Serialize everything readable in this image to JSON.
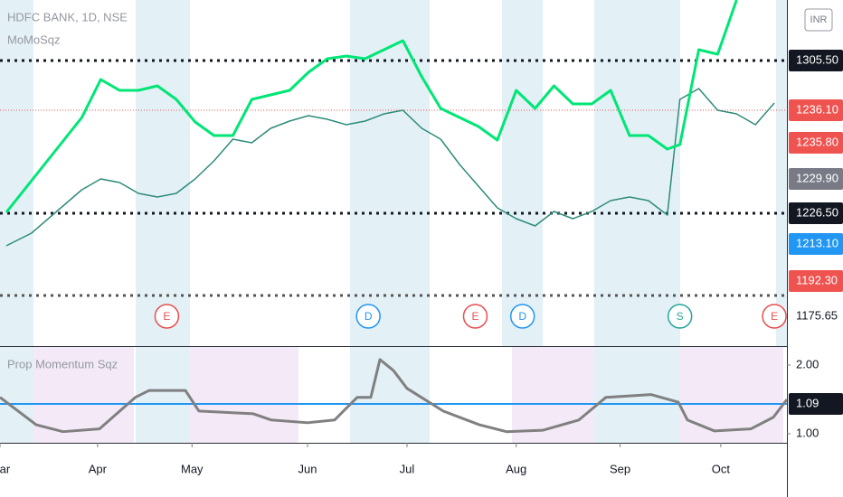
{
  "chart_data": [
    {
      "type": "line",
      "title": "HDFC BANK, 1D, NSE",
      "subtitle": "MoMoSqz",
      "xlim": [
        -2,
        248
      ],
      "ylim": [
        1147.5,
        1339
      ],
      "xticks": [
        {
          "value": -2,
          "label": "Mar"
        },
        {
          "value": 29,
          "label": "Apr"
        },
        {
          "value": 59,
          "label": "May"
        },
        {
          "value": 95.7,
          "label": "Jun"
        },
        {
          "value": 127.3,
          "label": "Jul"
        },
        {
          "value": 162,
          "label": "Aug"
        },
        {
          "value": 195,
          "label": "Sep"
        },
        {
          "value": 227,
          "label": "Oct"
        }
      ],
      "x": [
        0,
        8,
        16,
        24,
        30,
        36,
        42,
        48,
        54,
        60,
        66,
        72,
        78,
        84,
        90,
        96,
        102,
        108,
        114,
        120,
        126,
        132,
        138,
        144,
        150,
        156,
        162,
        168,
        174,
        180,
        186,
        192,
        198,
        204,
        210,
        214,
        220,
        226,
        232,
        238,
        244
      ],
      "series": [
        {
          "color": "#2e8b7a",
          "values": [
            1203,
            1210,
            1222,
            1234,
            1240,
            1238,
            1232,
            1230,
            1232,
            1240,
            1250,
            1262,
            1260,
            1268,
            1272,
            1275,
            1273,
            1270,
            1272,
            1276,
            1278,
            1268,
            1262,
            1248,
            1236,
            1224,
            1218,
            1214,
            1222,
            1218,
            1222,
            1228,
            1230,
            1228,
            1220,
            1284,
            1290,
            1278,
            1276,
            1270,
            1282
          ]
        },
        {
          "color": "#00e676",
          "values": [
            1221.5,
            1239,
            1256.5,
            1274,
            1295,
            1289,
            1289,
            1291.5,
            1284,
            1271.5,
            1264,
            1264,
            1284,
            1286.5,
            1289,
            1299,
            1306.5,
            1308,
            1306.5,
            1311.5,
            1316.5,
            1296.5,
            1279,
            1274,
            1269,
            1261.5,
            1289,
            1279,
            1291.5,
            1281.5,
            1281.5,
            1289,
            1264,
            1264,
            1256.5,
            1259,
            1311.5,
            1309,
            1339,
            null,
            null
          ]
        }
      ],
      "price_labels": [
        {
          "label": "1305.50",
          "color": "#131722"
        },
        {
          "label": "1236.10",
          "color": "#ef5350"
        },
        {
          "label": "1235.80",
          "color": "#ef5350"
        },
        {
          "label": "1229.90",
          "color": "#787b86"
        },
        {
          "label": "1226.50",
          "color": "#131722"
        },
        {
          "label": "1213.10",
          "color": "#2196f3"
        },
        {
          "label": "1192.30",
          "color": "#ef5350"
        },
        {
          "label": "1175.65",
          "color": "#ffffff"
        }
      ],
      "events": [
        {
          "label": "E",
          "x": 51,
          "color": "#e84e4e"
        },
        {
          "label": "D",
          "x": 115,
          "color": "#2196f3"
        },
        {
          "label": "E",
          "x": 149,
          "color": "#e84e4e"
        },
        {
          "label": "D",
          "x": 164,
          "color": "#2196f3"
        },
        {
          "label": "S",
          "x": 214,
          "color": "#26a69a"
        },
        {
          "label": "E",
          "x": 244,
          "color": "#e84e4e"
        }
      ],
      "currency": "INR"
    },
    {
      "type": "line",
      "title": "Prop Momentum Sqz",
      "xlim": [
        -2,
        248
      ],
      "ylim": [
        0.868,
        2.276
      ],
      "yticks": [
        {
          "value": 1,
          "label": "1.00"
        },
        {
          "value": 2,
          "label": "2.00"
        }
      ],
      "x": [
        -2,
        9.5,
        18,
        29.6,
        41,
        45.4,
        56.9,
        61.2,
        78.5,
        84.2,
        95.7,
        104.3,
        111.5,
        115.8,
        118.7,
        123,
        127.3,
        138.8,
        150.3,
        158.9,
        170.4,
        181.9,
        190.5,
        204.9,
        213.5,
        216.4,
        225,
        236.5,
        243.7,
        248
      ],
      "series": [
        {
          "color": "#808080",
          "values": [
            1.53,
            1.13,
            1.03,
            1.07,
            1.53,
            1.63,
            1.63,
            1.33,
            1.29,
            1.2,
            1.16,
            1.2,
            1.53,
            1.53,
            2.08,
            1.92,
            1.66,
            1.33,
            1.13,
            1.03,
            1.05,
            1.2,
            1.53,
            1.57,
            1.46,
            1.2,
            1.04,
            1.07,
            1.24,
            1.5
          ]
        }
      ],
      "price_labels": [
        {
          "label": "1.09",
          "color": "#131722"
        }
      ]
    }
  ]
}
